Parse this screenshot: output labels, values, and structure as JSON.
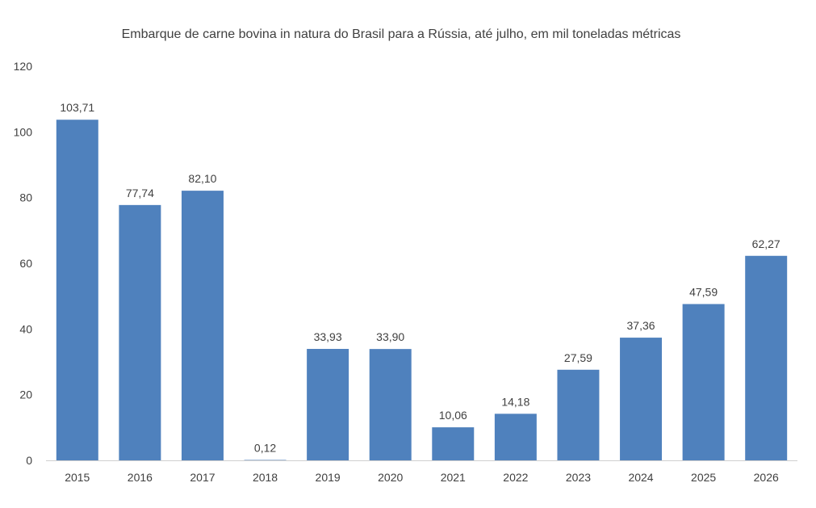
{
  "chart_data": {
    "type": "bar",
    "title": "Embarque de carne bovina in natura do Brasil para a Rússia, até julho, em mil toneladas métricas",
    "xlabel": "",
    "ylabel": "",
    "categories": [
      "2015",
      "2016",
      "2017",
      "2018",
      "2019",
      "2020",
      "2021",
      "2022",
      "2023",
      "2024",
      "2025",
      "2026"
    ],
    "values": [
      103.71,
      77.74,
      82.1,
      0.12,
      33.93,
      33.9,
      10.06,
      14.18,
      27.59,
      37.36,
      47.59,
      62.27
    ],
    "value_labels": [
      "103,71",
      "77,74",
      "82,10",
      "0,12",
      "33,93",
      "33,90",
      "10,06",
      "14,18",
      "27,59",
      "37,36",
      "47,59",
      "62,27"
    ],
    "ylim": [
      0,
      120
    ],
    "yticks": [
      "0",
      "20",
      "40",
      "60",
      "80",
      "100",
      "120"
    ],
    "bar_color": "#4f81bd",
    "grid": false,
    "legend": "none"
  }
}
